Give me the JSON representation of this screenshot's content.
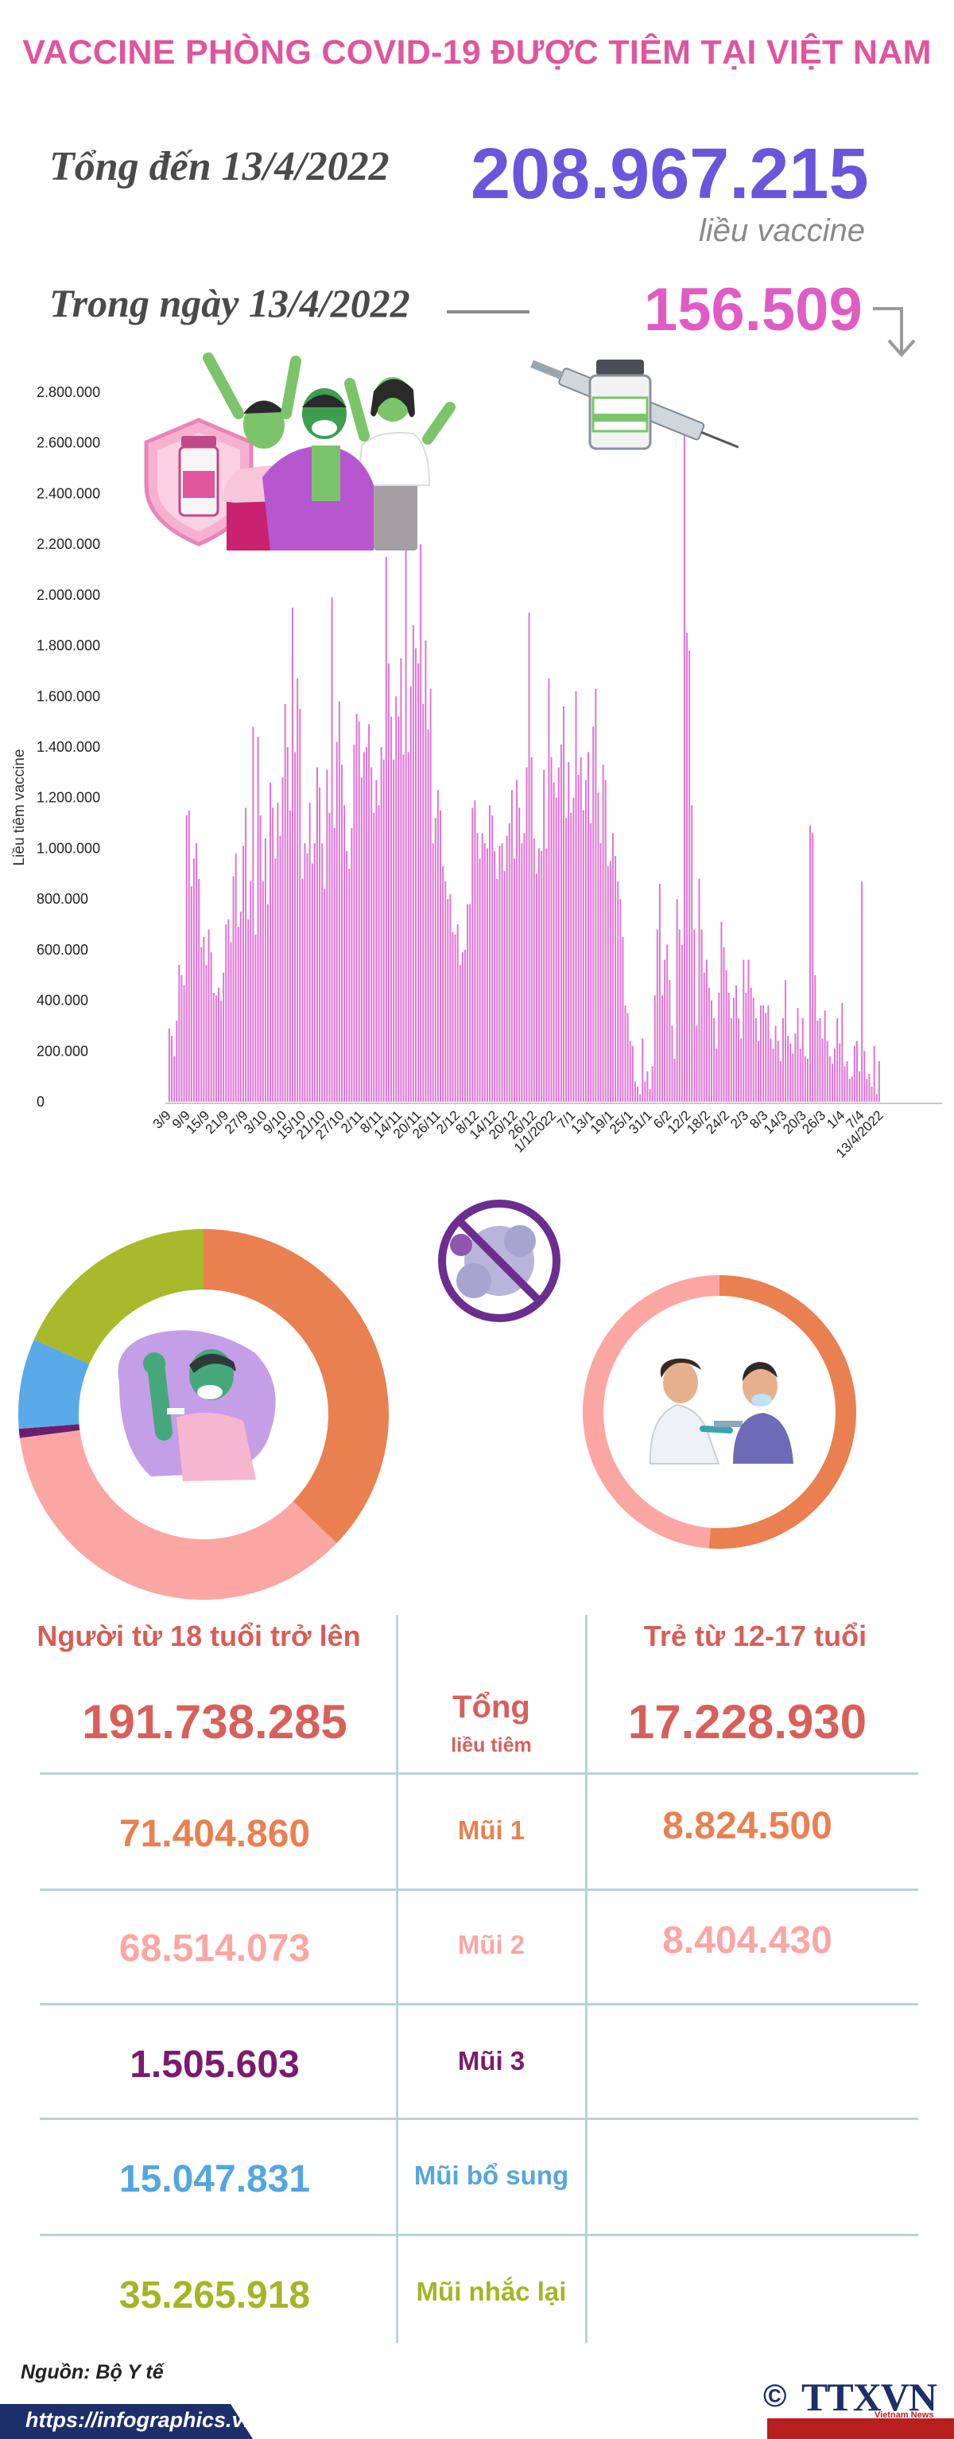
{
  "header": {
    "title": "VACCINE PHÒNG COVID-19 ĐƯỢC TIÊM TẠI VIỆT NAM",
    "total_label": "Tổng đến 13/4/2022",
    "total_value": "208.967.215",
    "total_unit": "liều vaccine",
    "daily_label": "Trong ngày 13/4/2022",
    "daily_value": "156.509"
  },
  "chart_data": {
    "type": "bar",
    "ylabel": "Liều tiêm vaccine",
    "ylim": [
      0,
      2800000
    ],
    "y_ticks": [
      "0",
      "200.000",
      "400.000",
      "600.000",
      "800.000",
      "1.000.000",
      "1.200.000",
      "1.400.000",
      "1.600.000",
      "1.800.000",
      "2.000.000",
      "2.200.000",
      "2.400.000",
      "2.600.000",
      "2.800.000"
    ],
    "x_tick_labels": [
      "3/9",
      "9/9",
      "15/9",
      "21/9",
      "27/9",
      "3/10",
      "9/10",
      "15/10",
      "21/10",
      "27/10",
      "2/11",
      "8/11",
      "14/11",
      "20/11",
      "26/11",
      "2/12",
      "8/12",
      "14/12",
      "20/12",
      "26/12",
      "1/1/2022",
      "7/1",
      "13/1",
      "19/1",
      "25/1",
      "31/1",
      "6/2",
      "12/2",
      "18/2",
      "24/2",
      "2/3",
      "8/3",
      "14/3",
      "20/3",
      "26/3",
      "1/4",
      "7/4",
      "13/4/2022"
    ],
    "bar_color": "#e06fd4",
    "series": [
      {
        "values": [
          290000,
          260000,
          180000,
          320000,
          540000,
          500000,
          460000,
          1130000,
          1150000,
          850000,
          960000,
          1020000,
          880000,
          610000,
          650000,
          540000,
          680000,
          590000,
          430000,
          420000,
          450000,
          400000,
          510000,
          700000,
          720000,
          630000,
          890000,
          980000,
          690000,
          750000,
          1010000,
          1160000,
          720000,
          870000,
          1480000,
          660000,
          1440000,
          1130000,
          870000,
          1040000,
          780000,
          1260000,
          1160000,
          960000,
          1180000,
          1050000,
          1280000,
          1570000,
          1400000,
          1150000,
          1950000,
          1380000,
          1670000,
          1550000,
          880000,
          1020000,
          980000,
          1180000,
          940000,
          1020000,
          1320000,
          1240000,
          1020000,
          840000,
          1310000,
          1140000,
          1990000,
          1080000,
          1420000,
          1580000,
          1330000,
          1170000,
          990000,
          920000,
          1080000,
          1410000,
          1530000,
          1500000,
          1280000,
          1380000,
          1400000,
          1490000,
          1320000,
          1140000,
          1270000,
          1170000,
          1400000,
          1350000,
          2150000,
          1730000,
          1520000,
          1350000,
          1600000,
          1520000,
          1750000,
          1370000,
          2370000,
          1380000,
          1640000,
          1880000,
          1790000,
          1730000,
          2200000,
          1570000,
          1820000,
          1470000,
          1630000,
          1020000,
          1120000,
          1230000,
          1150000,
          930000,
          870000,
          800000,
          820000,
          670000,
          660000,
          700000,
          540000,
          590000,
          600000,
          780000,
          780000,
          1160000,
          1190000,
          1060000,
          960000,
          1060000,
          1020000,
          1000000,
          1170000,
          1130000,
          990000,
          880000,
          1010000,
          1020000,
          910000,
          1050000,
          1100000,
          1230000,
          960000,
          1270000,
          1160000,
          1020000,
          1060000,
          1320000,
          1930000,
          1360000,
          1040000,
          900000,
          1000000,
          990000,
          1310000,
          1000000,
          1670000,
          1360000,
          1260000,
          1200000,
          1320000,
          1410000,
          1560000,
          1120000,
          1340000,
          1140000,
          1200000,
          1620000,
          1290000,
          1360000,
          1150000,
          1270000,
          1380000,
          1100000,
          1480000,
          1630000,
          1220000,
          1020000,
          1330000,
          1270000,
          930000,
          950000,
          1060000,
          970000,
          870000,
          800000,
          650000,
          380000,
          350000,
          240000,
          220000,
          80000,
          60000,
          30000,
          250000,
          80000,
          120000,
          50000,
          140000,
          420000,
          680000,
          860000,
          420000,
          560000,
          620000,
          480000,
          300000,
          170000,
          800000,
          680000,
          620000,
          2700000,
          1850000,
          1780000,
          1170000,
          680000,
          300000,
          880000,
          680000,
          510000,
          560000,
          450000,
          400000,
          330000,
          210000,
          430000,
          710000,
          610000,
          520000,
          430000,
          330000,
          410000,
          460000,
          330000,
          250000,
          560000,
          430000,
          560000,
          450000,
          410000,
          330000,
          240000,
          380000,
          380000,
          350000,
          380000,
          250000,
          210000,
          300000,
          240000,
          160000,
          330000,
          480000,
          260000,
          230000,
          190000,
          270000,
          370000,
          210000,
          330000,
          180000,
          170000,
          1090000,
          1060000,
          500000,
          320000,
          330000,
          250000,
          360000,
          240000,
          180000,
          150000,
          210000,
          330000,
          230000,
          390000,
          140000,
          160000,
          90000,
          100000,
          220000,
          240000,
          120000,
          870000,
          200000,
          90000,
          110000,
          60000,
          220000,
          30000,
          160000
        ]
      }
    ]
  },
  "donut_adults": {
    "segments": [
      {
        "name": "Mũi 1",
        "value": 71404860,
        "color": "#ea8050"
      },
      {
        "name": "Mũi 2",
        "value": 68514073,
        "color": "#fca6a4"
      },
      {
        "name": "Mũi 3",
        "value": 1505603,
        "color": "#6c1d6c"
      },
      {
        "name": "Mũi bổ sung",
        "value": 15047831,
        "color": "#5aaae9"
      },
      {
        "name": "Mũi nhắc lại",
        "value": 35265918,
        "color": "#a8b92c"
      }
    ]
  },
  "donut_children": {
    "segments": [
      {
        "name": "Mũi 1",
        "value": 8824500,
        "color": "#ea8050"
      },
      {
        "name": "Mũi 2",
        "value": 8404430,
        "color": "#fca6a4"
      }
    ]
  },
  "table": {
    "col_adults": "Người từ 18 tuổi trở lên",
    "col_children": "Trẻ từ 12-17 tuổi",
    "total_label": "Tổng",
    "total_sublabel": "liều tiêm",
    "total_adults": "191.738.285",
    "total_children": "17.228.930",
    "rows": [
      {
        "label": "Mũi 1",
        "adults": "71.404.860",
        "children": "8.824.500",
        "color": "#ea8050"
      },
      {
        "label": "Mũi 2",
        "adults": "68.514.073",
        "children": "8.404.430",
        "color": "#fca6a4"
      },
      {
        "label": "Mũi 3",
        "adults": "1.505.603",
        "children": "",
        "color": "#7b1a6e"
      },
      {
        "label": "Mũi bổ sung",
        "adults": "15.047.831",
        "children": "",
        "color": "#55a5e0"
      },
      {
        "label": "Mũi nhắc lại",
        "adults": "35.265.918",
        "children": "",
        "color": "#a4b526"
      }
    ]
  },
  "footer": {
    "source": "Nguồn: Bộ Y tế",
    "url": "https://infographics.vn",
    "logo_text": "TTXVN",
    "logo_sub": "Vietnam News Agency",
    "copyright": "©"
  },
  "colors": {
    "title_pink": "#e0559c",
    "purple_total": "#6a55dc",
    "pink_daily": "#e05cc4",
    "table_line": "#b9d3d6",
    "header_red": "#d95d57",
    "total_red": "#d8605a",
    "footer_navy": "#1c2f6a"
  }
}
